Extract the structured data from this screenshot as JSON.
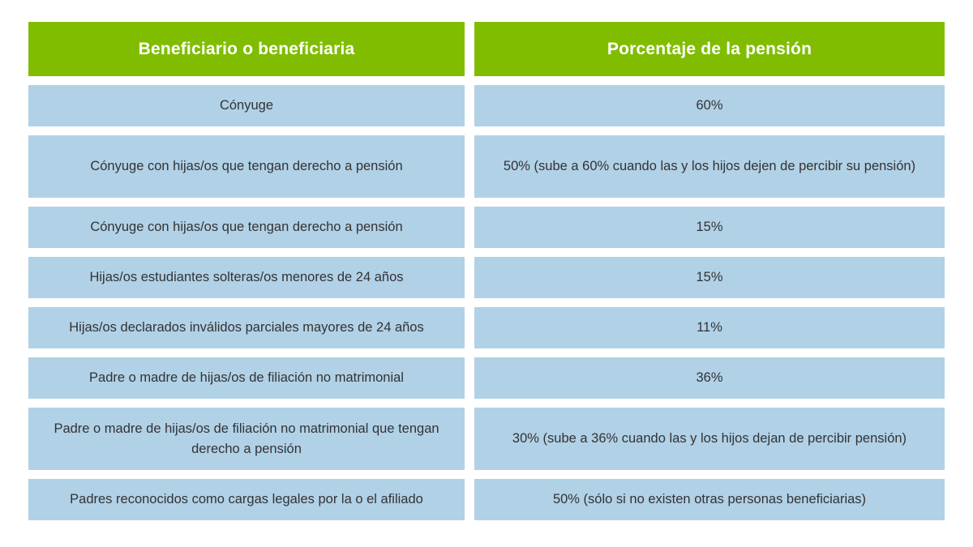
{
  "table": {
    "headers": {
      "beneficiary": "Beneficiario o beneficiaria",
      "percentage": "Porcentaje de la pensión"
    },
    "rows": [
      {
        "beneficiary": "Cónyuge",
        "percentage": "60%"
      },
      {
        "beneficiary": "Cónyuge con hijas/os que tengan derecho a pensión",
        "percentage": "50% (sube a 60% cuando las y los hijos dejen de percibir su pensión)"
      },
      {
        "beneficiary": "Cónyuge con hijas/os que tengan derecho a pensión",
        "percentage": "15%"
      },
      {
        "beneficiary": "Hijas/os estudiantes solteras/os menores de 24 años",
        "percentage": "15%"
      },
      {
        "beneficiary": "Hijas/os declarados inválidos parciales mayores de 24 años",
        "percentage": "11%"
      },
      {
        "beneficiary": "Padre o madre de hijas/os de filiación no matrimonial",
        "percentage": "36%"
      },
      {
        "beneficiary": "Padre o madre de hijas/os de filiación no matrimonial que tengan derecho a pensión",
        "percentage": "30% (sube a 36% cuando las y los hijos dejan de percibir pensión)"
      },
      {
        "beneficiary": "Padres reconocidos como cargas legales por la o el afiliado",
        "percentage": "50% (sólo si no existen otras personas beneficiarias)"
      }
    ]
  },
  "colors": {
    "header_bg": "#80bd01",
    "row_bg": "#b1d1e7",
    "text": "#333333"
  }
}
